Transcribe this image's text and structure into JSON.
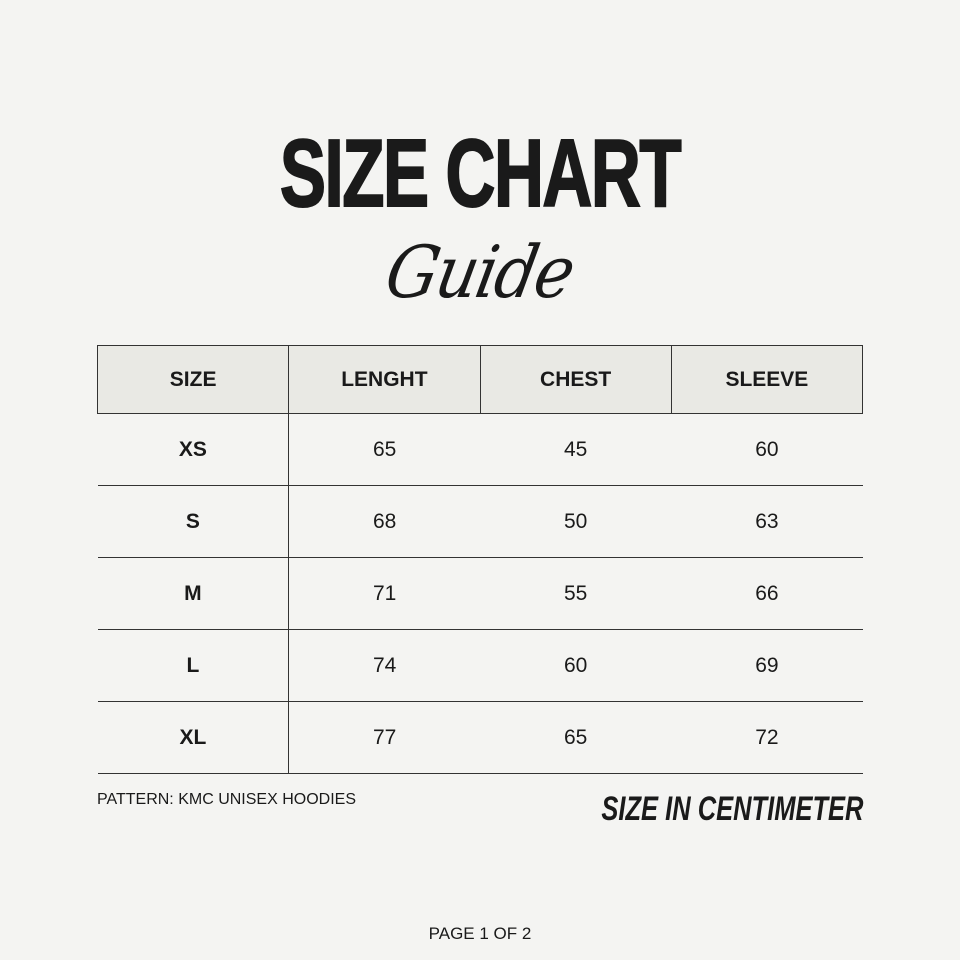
{
  "title": "SIZE CHART",
  "subtitle": "Guide",
  "table": {
    "headers": [
      "SIZE",
      "LENGHT",
      "CHEST",
      "SLEEVE"
    ],
    "rows": [
      [
        "XS",
        "65",
        "45",
        "60"
      ],
      [
        "S",
        "68",
        "50",
        "63"
      ],
      [
        "M",
        "71",
        "55",
        "66"
      ],
      [
        "L",
        "74",
        "60",
        "69"
      ],
      [
        "XL",
        "77",
        "65",
        "72"
      ]
    ]
  },
  "pattern": "PATTERN: KMC UNISEX HOODIES",
  "unit_note": "SIZE IN CENTIMETER",
  "page_indicator": "PAGE 1 OF 2",
  "colors": {
    "background": "#f4f4f2",
    "header_fill": "#e9e9e4",
    "text": "#1a1a1a"
  }
}
